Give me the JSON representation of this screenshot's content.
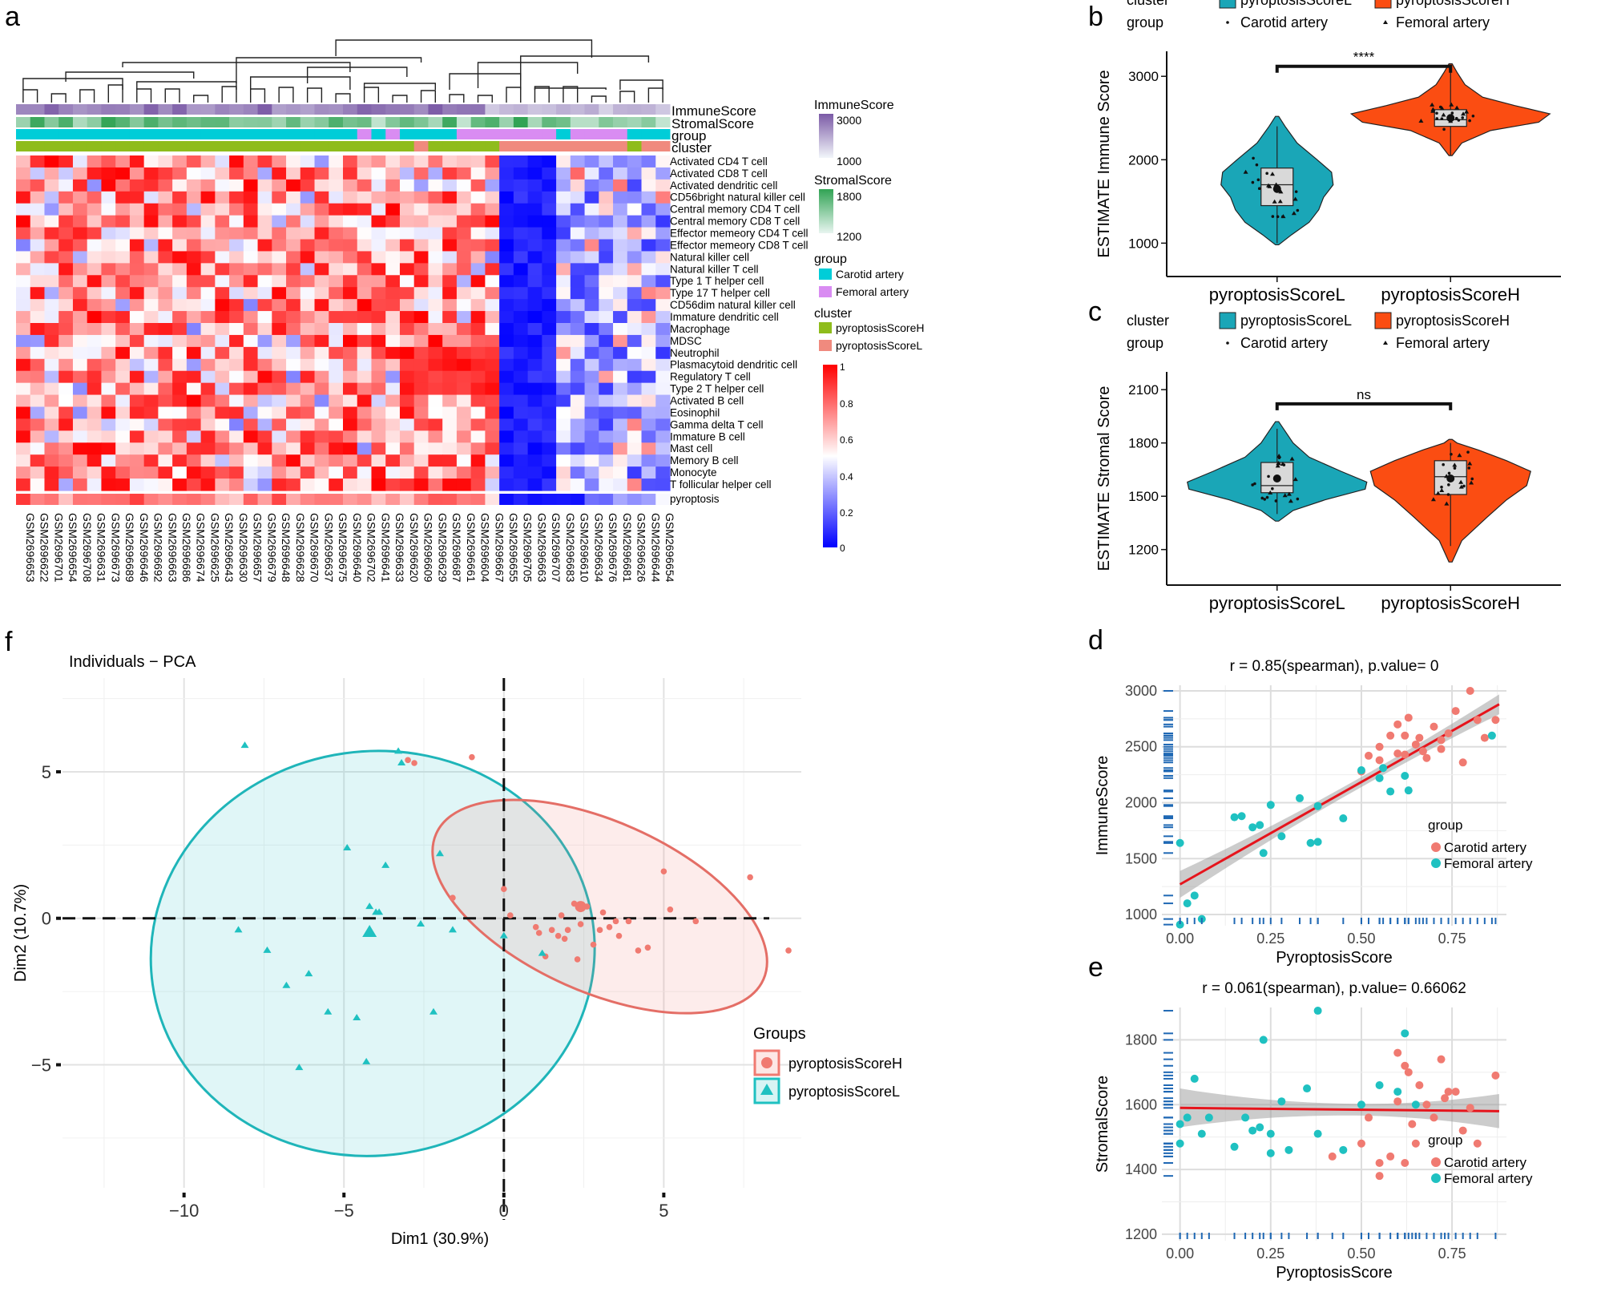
{
  "figure_title": "Multi-panel figure: immune infiltration heatmap, ESTIMATE violins, PCA and correlation plots",
  "panel_letters": {
    "a": "a",
    "b": "b",
    "c": "c",
    "d": "d",
    "e": "e",
    "f": "f"
  },
  "colors": {
    "immune_hi": "#7b5aa6",
    "stromal_hi": "#31a354",
    "carotid": "#00cdd8",
    "femoral": "#d98cf2",
    "clusterH": "#8fbc1c",
    "clusterL": "#f08a7e",
    "heat_low": "#0000ff",
    "heat_mid": "#ffffff",
    "heat_high": "#ff0000",
    "violinL": "#1aa6b7",
    "violinH": "#fb4d12",
    "pcaH": "#f07a71",
    "pcaL": "#1fc1c1",
    "red_line": "#e6141c",
    "rug": "#1f68b4"
  },
  "chart_data": [
    {
      "type": "heatmap",
      "panel": "a",
      "annotation_tracks": [
        "ImmuneScore",
        "StromalScore",
        "group",
        "cluster"
      ],
      "rows": [
        "Activated CD4 T cell",
        "Activated CD8 T cell",
        "Activated dendritic cell",
        "CD56bright natural killer cell",
        "Central memory CD4 T cell",
        "Central memory CD8 T cell",
        "Effector memeory CD4 T cell",
        "Effector memeory CD8 T cell",
        "Natural killer cell",
        "Natural killer T cell",
        "Type 1 T helper cell",
        "Type 17 T helper cell",
        "CD56dim natural killer cell",
        "Immature dendritic cell",
        "Macrophage",
        "MDSC",
        "Neutrophil",
        "Plasmacytoid dendritic cell",
        "Regulatory T cell",
        "Type 2 T helper cell",
        "Activated B cell",
        "Eosinophil",
        "Gamma delta T cell",
        "Immature  B cell",
        "Mast cell",
        "Memory B cell",
        "Monocyte",
        "T follicular helper cell"
      ],
      "bottom_row": "pyroptosis",
      "columns": [
        "GSM2696653",
        "GSM2696622",
        "GSM2696701",
        "GSM2696654",
        "GSM2696708",
        "GSM2696631",
        "GSM2696673",
        "GSM2696689",
        "GSM2696646",
        "GSM2696692",
        "GSM2696663",
        "GSM2696686",
        "GSM2696674",
        "GSM2696625",
        "GSM2696643",
        "GSM2696630",
        "GSM2696657",
        "GSM2696679",
        "GSM2696648",
        "GSM2696628",
        "GSM2696670",
        "GSM2696637",
        "GSM2696675",
        "GSM2696640",
        "GSM2696702",
        "GSM2696641",
        "GSM2696633",
        "GSM2696620",
        "GSM2696609",
        "GSM2696629",
        "GSM2696687",
        "GSM2696661",
        "GSM2696604",
        "GSM2696667",
        "GSM2696655",
        "GSM2696705",
        "GSM2696663",
        "GSM2696707",
        "GSM2696683",
        "GSM2696610",
        "GSM2696634",
        "GSM2696676",
        "GSM2696681",
        "GSM2696626",
        "GSM2696644",
        "GSM2696654"
      ],
      "legend": {
        "immune": {
          "title": "ImmuneScore",
          "ticks": [
            "3000",
            "1000"
          ]
        },
        "stromal": {
          "title": "StromalScore",
          "ticks": [
            "1800",
            "1200"
          ]
        },
        "group": {
          "title": "group",
          "items": [
            "Carotid artery",
            "Femoral artery"
          ]
        },
        "cluster": {
          "title": "cluster",
          "items": [
            "pyroptosisScoreH",
            "pyroptosisScoreL"
          ]
        },
        "scale_ticks": [
          "1",
          "0.8",
          "0.6",
          "0.4",
          "0.2",
          "0"
        ]
      }
    },
    {
      "type": "violin",
      "panel": "b",
      "legend": {
        "cluster_label": "cluster",
        "group_label": "group",
        "clusterL": "pyroptosisScoreL",
        "clusterH": "pyroptosisScoreH",
        "carotid": "Carotid artery",
        "femoral": "Femoral artery"
      },
      "ylabel": "ESTIMATE Immune Score",
      "categories": [
        "pyroptosisScoreL",
        "pyroptosisScoreH"
      ],
      "yticks": [
        1000,
        2000,
        3000
      ],
      "ylim": [
        600,
        3300
      ],
      "groups": [
        {
          "name": "pyroptosisScoreL",
          "q1": 1450,
          "median": 1700,
          "q3": 1900,
          "min": 1000,
          "max": 2400,
          "mean": 1650
        },
        {
          "name": "pyroptosisScoreH",
          "q1": 2400,
          "median": 2480,
          "q3": 2600,
          "min": 2050,
          "max": 3050,
          "mean": 2500
        }
      ],
      "significance": "****"
    },
    {
      "type": "violin",
      "panel": "c",
      "legend": {
        "cluster_label": "cluster",
        "group_label": "group",
        "clusterL": "pyroptosisScoreL",
        "clusterH": "pyroptosisScoreH",
        "carotid": "Carotid artery",
        "femoral": "Femoral artery"
      },
      "ylabel": "ESTIMATE Stromal Score",
      "categories": [
        "pyroptosisScoreL",
        "pyroptosisScoreH"
      ],
      "yticks": [
        1200,
        1500,
        1800,
        2100
      ],
      "ylim": [
        1000,
        2200
      ],
      "groups": [
        {
          "name": "pyroptosisScoreL",
          "q1": 1520,
          "median": 1560,
          "q3": 1690,
          "min": 1400,
          "max": 1880,
          "mean": 1600
        },
        {
          "name": "pyroptosisScoreH",
          "q1": 1510,
          "median": 1610,
          "q3": 1700,
          "min": 1220,
          "max": 1800,
          "mean": 1600
        }
      ],
      "significance": "ns"
    },
    {
      "type": "scatter",
      "panel": "d",
      "title": "r = 0.85(spearman), p.value= 0",
      "xlabel": "PyroptosisScore",
      "ylabel": "ImmuneScore",
      "xticks": [
        "0.00",
        "0.25",
        "0.50",
        "0.75"
      ],
      "yticks": [
        "1000",
        "1500",
        "2000",
        "2500",
        "3000"
      ],
      "xlim": [
        -0.05,
        0.9
      ],
      "ylim": [
        900,
        3050
      ],
      "fit": {
        "x": [
          0,
          0.88
        ],
        "y": [
          1270,
          2880
        ]
      },
      "legend": {
        "title": "group",
        "items": [
          "Carotid artery",
          "Femoral artery"
        ]
      },
      "series": [
        {
          "name": "Carotid artery",
          "points": [
            [
              0.5,
              2280
            ],
            [
              0.52,
              2420
            ],
            [
              0.55,
              2500
            ],
            [
              0.58,
              2600
            ],
            [
              0.6,
              2700
            ],
            [
              0.62,
              2430
            ],
            [
              0.63,
              2760
            ],
            [
              0.65,
              2520
            ],
            [
              0.66,
              2580
            ],
            [
              0.68,
              2400
            ],
            [
              0.7,
              2680
            ],
            [
              0.72,
              2560
            ],
            [
              0.74,
              2620
            ],
            [
              0.76,
              2820
            ],
            [
              0.78,
              2360
            ],
            [
              0.8,
              3000
            ],
            [
              0.82,
              2740
            ],
            [
              0.87,
              2740
            ],
            [
              0.55,
              2380
            ],
            [
              0.6,
              2440
            ],
            [
              0.67,
              2460
            ],
            [
              0.72,
              2480
            ],
            [
              0.84,
              2580
            ],
            [
              0.62,
              2600
            ]
          ]
        },
        {
          "name": "Femoral artery",
          "points": [
            [
              0.0,
              910
            ],
            [
              0.0,
              1640
            ],
            [
              0.02,
              1100
            ],
            [
              0.04,
              1170
            ],
            [
              0.06,
              960
            ],
            [
              0.15,
              1870
            ],
            [
              0.17,
              1880
            ],
            [
              0.2,
              1780
            ],
            [
              0.22,
              1800
            ],
            [
              0.23,
              1550
            ],
            [
              0.25,
              1980
            ],
            [
              0.28,
              1700
            ],
            [
              0.33,
              2040
            ],
            [
              0.36,
              1640
            ],
            [
              0.38,
              1650
            ],
            [
              0.38,
              1970
            ],
            [
              0.45,
              1860
            ],
            [
              0.5,
              2290
            ],
            [
              0.55,
              2220
            ],
            [
              0.56,
              2310
            ],
            [
              0.58,
              2100
            ],
            [
              0.62,
              2240
            ],
            [
              0.63,
              2110
            ],
            [
              0.86,
              2600
            ]
          ]
        }
      ]
    },
    {
      "type": "scatter",
      "panel": "e",
      "title": "r = 0.061(spearman), p.value= 0.66062",
      "xlabel": "PyroptosisScore",
      "ylabel": "StromalScore",
      "xticks": [
        "0.00",
        "0.25",
        "0.50",
        "0.75"
      ],
      "yticks": [
        "1200",
        "1400",
        "1600",
        "1800"
      ],
      "xlim": [
        -0.05,
        0.9
      ],
      "ylim": [
        1180,
        1900
      ],
      "fit": {
        "x": [
          0,
          0.88
        ],
        "y": [
          1590,
          1580
        ]
      },
      "legend": {
        "title": "group",
        "items": [
          "Carotid artery",
          "Femoral artery"
        ]
      },
      "series": [
        {
          "name": "Carotid artery",
          "points": [
            [
              0.42,
              1440
            ],
            [
              0.5,
              1480
            ],
            [
              0.52,
              1560
            ],
            [
              0.55,
              1420
            ],
            [
              0.58,
              1440
            ],
            [
              0.6,
              1610
            ],
            [
              0.62,
              1720
            ],
            [
              0.63,
              1700
            ],
            [
              0.64,
              1540
            ],
            [
              0.65,
              1480
            ],
            [
              0.66,
              1660
            ],
            [
              0.68,
              1600
            ],
            [
              0.7,
              1560
            ],
            [
              0.72,
              1740
            ],
            [
              0.74,
              1640
            ],
            [
              0.76,
              1640
            ],
            [
              0.78,
              1520
            ],
            [
              0.8,
              1590
            ],
            [
              0.82,
              1480
            ],
            [
              0.87,
              1690
            ],
            [
              0.55,
              1380
            ],
            [
              0.62,
              1420
            ],
            [
              0.73,
              1620
            ],
            [
              0.6,
              1760
            ]
          ]
        },
        {
          "name": "Femoral artery",
          "points": [
            [
              0.0,
              1540
            ],
            [
              0.0,
              1480
            ],
            [
              0.02,
              1560
            ],
            [
              0.04,
              1680
            ],
            [
              0.06,
              1510
            ],
            [
              0.08,
              1560
            ],
            [
              0.15,
              1470
            ],
            [
              0.18,
              1560
            ],
            [
              0.2,
              1520
            ],
            [
              0.22,
              1530
            ],
            [
              0.23,
              1800
            ],
            [
              0.25,
              1510
            ],
            [
              0.25,
              1450
            ],
            [
              0.28,
              1610
            ],
            [
              0.3,
              1460
            ],
            [
              0.35,
              1650
            ],
            [
              0.38,
              1890
            ],
            [
              0.38,
              1510
            ],
            [
              0.45,
              1460
            ],
            [
              0.5,
              1600
            ],
            [
              0.55,
              1660
            ],
            [
              0.6,
              1640
            ],
            [
              0.62,
              1820
            ],
            [
              0.65,
              1600
            ]
          ]
        }
      ]
    },
    {
      "type": "scatter",
      "panel": "f",
      "title": "Individuals − PCA",
      "xlabel": "Dim1 (30.9%)",
      "ylabel": "Dim2 (10.7%)",
      "xticks": [
        "−10",
        "−5",
        "0",
        "5"
      ],
      "yticks": [
        "5",
        "0",
        "−5"
      ],
      "xlim": [
        -13.8,
        9.3
      ],
      "ylim": [
        -9.2,
        8.2
      ],
      "legend": {
        "title": "Groups",
        "items": [
          "pyroptosisScoreH",
          "pyroptosisScoreL"
        ]
      },
      "series": [
        {
          "name": "pyroptosisScoreH",
          "centroid": [
            2.4,
            0.4
          ],
          "points": [
            [
              -3.0,
              5.4
            ],
            [
              -2.8,
              5.3
            ],
            [
              -1.0,
              5.5
            ],
            [
              -1.6,
              0.7
            ],
            [
              0,
              1.0
            ],
            [
              0.2,
              0.1
            ],
            [
              1.0,
              -0.3
            ],
            [
              1.1,
              -0.5
            ],
            [
              1.5,
              -0.4
            ],
            [
              1.7,
              -0.6
            ],
            [
              1.8,
              0.1
            ],
            [
              1.9,
              -0.7
            ],
            [
              2.0,
              -0.4
            ],
            [
              2.2,
              0.5
            ],
            [
              2.4,
              -0.2
            ],
            [
              2.6,
              0.4
            ],
            [
              2.8,
              -0.9
            ],
            [
              3.0,
              -0.4
            ],
            [
              3.1,
              0.2
            ],
            [
              3.3,
              -0.3
            ],
            [
              3.5,
              -0.1
            ],
            [
              3.6,
              -0.6
            ],
            [
              3.9,
              -0.1
            ],
            [
              4.2,
              -1.1
            ],
            [
              4.5,
              -1.0
            ],
            [
              5.0,
              1.6
            ],
            [
              5.2,
              0.3
            ],
            [
              6.0,
              -0.1
            ],
            [
              7.7,
              1.4
            ],
            [
              8.9,
              -1.1
            ],
            [
              1.3,
              -1.3
            ],
            [
              2.3,
              -1.4
            ]
          ]
        },
        {
          "name": "pyroptosisScoreL",
          "centroid": [
            -4.2,
            -0.5
          ],
          "points": [
            [
              -8.1,
              5.9
            ],
            [
              -3.3,
              5.7
            ],
            [
              -3.2,
              5.3
            ],
            [
              -4.9,
              2.4
            ],
            [
              -2.0,
              2.2
            ],
            [
              -3.7,
              1.8
            ],
            [
              -4.2,
              0.4
            ],
            [
              -4.0,
              0.2
            ],
            [
              -3.9,
              0.2
            ],
            [
              -2.6,
              -0.2
            ],
            [
              -1.6,
              -0.4
            ],
            [
              -8.3,
              -0.4
            ],
            [
              -7.4,
              -1.1
            ],
            [
              -6.1,
              -1.9
            ],
            [
              -6.8,
              -2.3
            ],
            [
              -4.6,
              -3.4
            ],
            [
              -5.5,
              -3.2
            ],
            [
              -2.2,
              -3.2
            ],
            [
              -4.3,
              -4.9
            ],
            [
              -6.4,
              -5.1
            ],
            [
              0,
              -0.6
            ],
            [
              1.2,
              -1.2
            ]
          ]
        }
      ]
    }
  ]
}
